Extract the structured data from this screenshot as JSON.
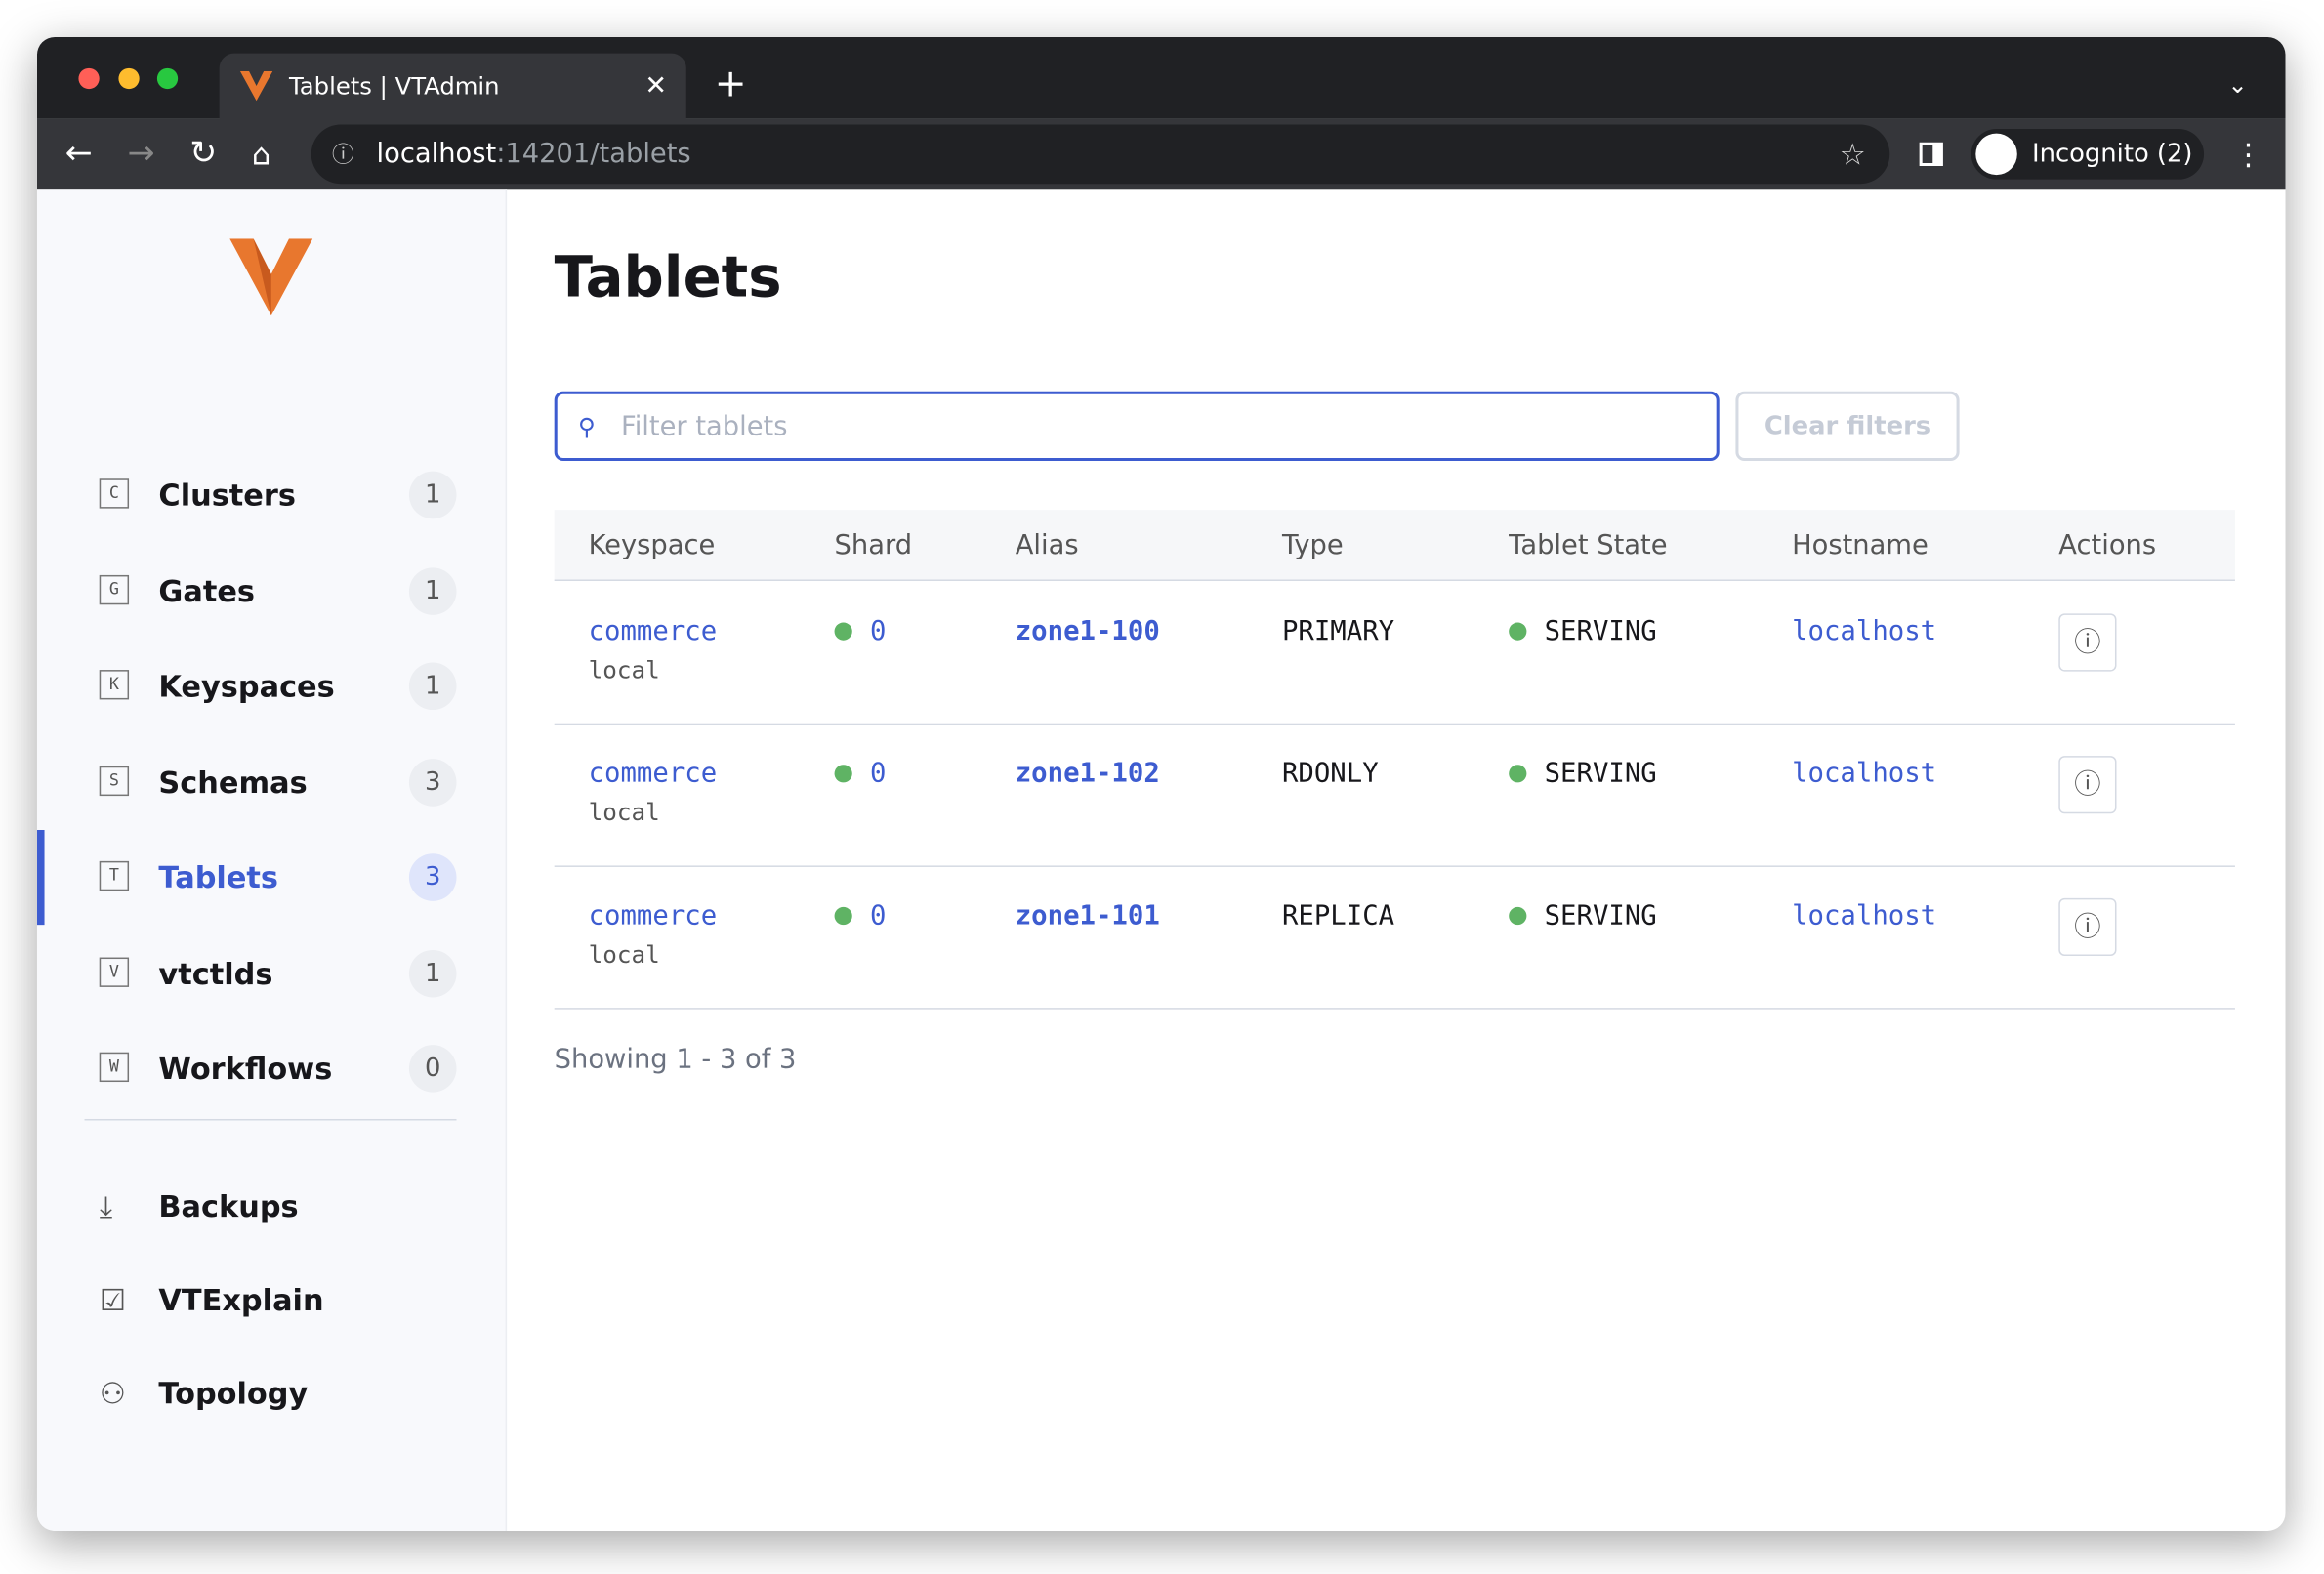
{
  "browser": {
    "tab_title": "Tablets | VTAdmin",
    "url_host": "localhost",
    "url_path": ":14201/tablets",
    "profile": "Incognito (2)"
  },
  "sidebar": {
    "nav": [
      {
        "icon": "C",
        "label": "Clusters",
        "count": 1,
        "active": false
      },
      {
        "icon": "G",
        "label": "Gates",
        "count": 1,
        "active": false
      },
      {
        "icon": "K",
        "label": "Keyspaces",
        "count": 1,
        "active": false
      },
      {
        "icon": "S",
        "label": "Schemas",
        "count": 3,
        "active": false
      },
      {
        "icon": "T",
        "label": "Tablets",
        "count": 3,
        "active": true
      },
      {
        "icon": "V",
        "label": "vtctlds",
        "count": 1,
        "active": false
      },
      {
        "icon": "W",
        "label": "Workflows",
        "count": 0,
        "active": false
      }
    ],
    "links": [
      {
        "label": "Backups"
      },
      {
        "label": "VTExplain"
      },
      {
        "label": "Topology"
      }
    ]
  },
  "page": {
    "title": "Tablets",
    "filter_placeholder": "Filter tablets",
    "clear_button": "Clear filters",
    "table": {
      "columns": [
        "Keyspace",
        "Shard",
        "Alias",
        "Type",
        "Tablet State",
        "Hostname",
        "Actions"
      ],
      "rows": [
        {
          "keyspace": "commerce",
          "cluster": "local",
          "shard": "0",
          "alias": "zone1-100",
          "type": "PRIMARY",
          "state": "SERVING",
          "hostname": "localhost"
        },
        {
          "keyspace": "commerce",
          "cluster": "local",
          "shard": "0",
          "alias": "zone1-102",
          "type": "RDONLY",
          "state": "SERVING",
          "hostname": "localhost"
        },
        {
          "keyspace": "commerce",
          "cluster": "local",
          "shard": "0",
          "alias": "zone1-101",
          "type": "REPLICA",
          "state": "SERVING",
          "hostname": "localhost"
        }
      ]
    },
    "footer": "Showing 1 - 3 of 3"
  }
}
